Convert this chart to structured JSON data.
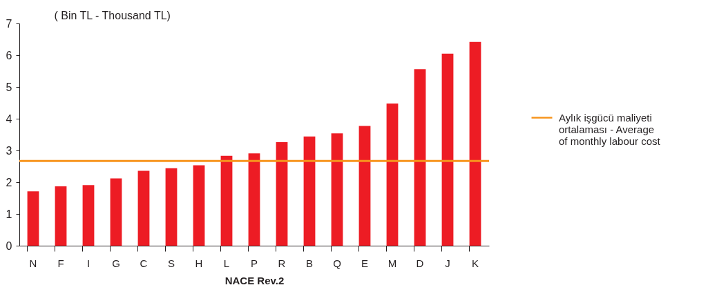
{
  "chart_data": {
    "type": "bar",
    "ylabel": "( Bin TL - Thousand TL)",
    "xlabel": "NACE Rev.2",
    "categories": [
      "N",
      "F",
      "I",
      "G",
      "C",
      "S",
      "H",
      "L",
      "P",
      "R",
      "B",
      "Q",
      "E",
      "M",
      "D",
      "J",
      "K"
    ],
    "values": [
      1.71,
      1.87,
      1.91,
      2.12,
      2.36,
      2.44,
      2.53,
      2.83,
      2.91,
      3.26,
      3.44,
      3.54,
      3.77,
      4.48,
      5.56,
      6.05,
      6.42
    ],
    "color": "#ed1c24",
    "ylim": [
      0,
      7
    ],
    "yticks": [
      0,
      1,
      2,
      3,
      4,
      5,
      6,
      7
    ],
    "ref_lines": [
      {
        "axis": "y",
        "value": 2.67,
        "label": "Aylık işgücü maliyeti ortalaması - Average of monthly labour cost",
        "color": "#f7941d"
      }
    ],
    "legend": "right",
    "grid": false
  }
}
